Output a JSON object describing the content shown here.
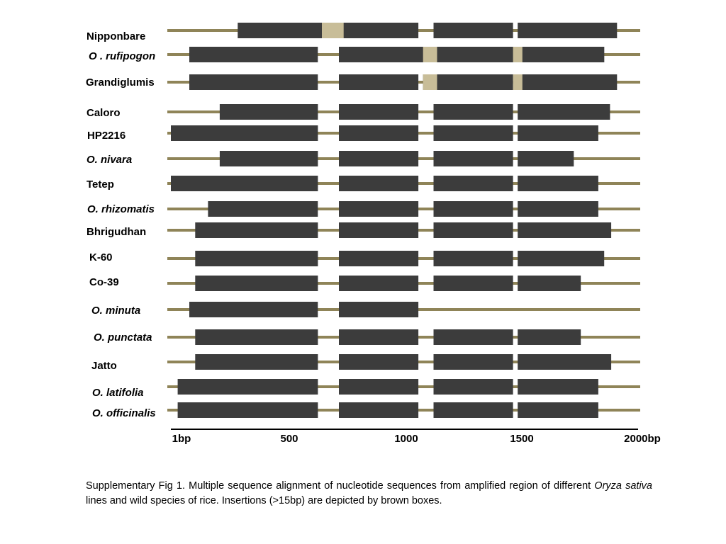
{
  "colors": {
    "backbone": "#8f8458",
    "block": "#3c3c3c",
    "insertion": "#c8bd98",
    "axis": "#000000"
  },
  "axis": {
    "start": 1,
    "end": 2000,
    "tick_labels": [
      {
        "value": 1,
        "label": "1bp"
      },
      {
        "value": 500,
        "label": "500"
      },
      {
        "value": 1000,
        "label": "1000"
      },
      {
        "value": 1500,
        "label": "1500"
      },
      {
        "value": 2000,
        "label": "2000bp"
      }
    ]
  },
  "rows": [
    {
      "name": "Nipponbare",
      "italic": false,
      "blocks": [
        [
          287,
          1060
        ],
        [
          1125,
          1465
        ],
        [
          1485,
          1910
        ]
      ],
      "insertions": [
        [
          647,
          740
        ]
      ]
    },
    {
      "name": "O . rufipogon",
      "italic": true,
      "blocks": [
        [
          80,
          630
        ],
        [
          720,
          1855
        ],
        [
          1485,
          1855
        ]
      ],
      "insertions": [
        [
          1080,
          1140
        ],
        [
          1465,
          1505
        ]
      ]
    },
    {
      "name": "Grandiglumis",
      "italic": false,
      "blocks": [
        [
          80,
          630
        ],
        [
          720,
          1060
        ],
        [
          1080,
          1465
        ],
        [
          1485,
          1910
        ]
      ],
      "insertions": [
        [
          1080,
          1140
        ],
        [
          1465,
          1505
        ]
      ]
    },
    {
      "name": "Caloro",
      "italic": false,
      "blocks": [
        [
          210,
          630
        ],
        [
          720,
          1060
        ],
        [
          1125,
          1465
        ],
        [
          1485,
          1880
        ]
      ],
      "insertions": []
    },
    {
      "name": "HP2216",
      "italic": false,
      "blocks": [
        [
          1,
          630
        ],
        [
          720,
          1060
        ],
        [
          1125,
          1465
        ],
        [
          1485,
          1830
        ]
      ],
      "insertions": []
    },
    {
      "name": "O. nivara",
      "italic": true,
      "blocks": [
        [
          210,
          630
        ],
        [
          720,
          1060
        ],
        [
          1125,
          1465
        ],
        [
          1485,
          1725
        ]
      ],
      "insertions": []
    },
    {
      "name": "Tetep",
      "italic": false,
      "blocks": [
        [
          1,
          630
        ],
        [
          720,
          1060
        ],
        [
          1125,
          1465
        ],
        [
          1485,
          1830
        ]
      ],
      "insertions": []
    },
    {
      "name": "O. rhizomatis",
      "italic": true,
      "blocks": [
        [
          160,
          630
        ],
        [
          720,
          1060
        ],
        [
          1125,
          1465
        ],
        [
          1485,
          1830
        ]
      ],
      "insertions": []
    },
    {
      "name": "Bhrigudhan",
      "italic": false,
      "blocks": [
        [
          105,
          630
        ],
        [
          720,
          1060
        ],
        [
          1125,
          1465
        ],
        [
          1485,
          1885
        ]
      ],
      "insertions": []
    },
    {
      "name": "K-60",
      "italic": false,
      "blocks": [
        [
          105,
          630
        ],
        [
          720,
          1060
        ],
        [
          1125,
          1465
        ],
        [
          1485,
          1855
        ]
      ],
      "insertions": []
    },
    {
      "name": "Co-39",
      "italic": false,
      "blocks": [
        [
          105,
          630
        ],
        [
          720,
          1060
        ],
        [
          1125,
          1465
        ],
        [
          1485,
          1755
        ]
      ],
      "insertions": []
    },
    {
      "name": "O. minuta",
      "italic": true,
      "blocks": [
        [
          80,
          630
        ],
        [
          720,
          1060
        ]
      ],
      "insertions": []
    },
    {
      "name": "O. punctata",
      "italic": true,
      "blocks": [
        [
          105,
          630
        ],
        [
          720,
          1060
        ],
        [
          1125,
          1465
        ],
        [
          1485,
          1755
        ]
      ],
      "insertions": []
    },
    {
      "name": "Jatto",
      "italic": false,
      "blocks": [
        [
          105,
          630
        ],
        [
          720,
          1060
        ],
        [
          1125,
          1465
        ],
        [
          1485,
          1885
        ]
      ],
      "insertions": []
    },
    {
      "name": "O. latifolia",
      "italic": true,
      "blocks": [
        [
          30,
          630
        ],
        [
          720,
          1060
        ],
        [
          1125,
          1465
        ],
        [
          1485,
          1830
        ]
      ],
      "insertions": []
    },
    {
      "name": "O. officinalis",
      "italic": true,
      "blocks": [
        [
          30,
          630
        ],
        [
          720,
          1060
        ],
        [
          1125,
          1465
        ],
        [
          1485,
          1830
        ]
      ],
      "insertions": []
    }
  ],
  "caption": {
    "part1": "Supplementary Fig 1. Multiple sequence alignment of nucleotide sequences from amplified region of different ",
    "species": "Oryza sativa",
    "part2": " lines and wild species of rice. Insertions (>15bp) are depicted by brown boxes."
  }
}
